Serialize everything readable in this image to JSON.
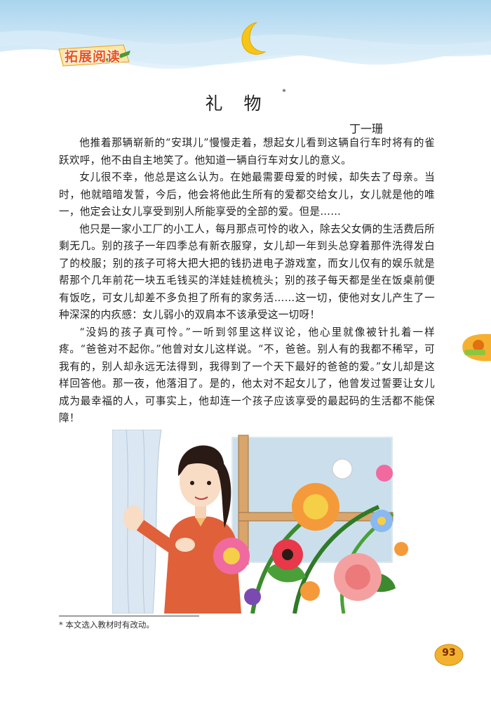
{
  "header": {
    "section_label": "拓展阅读"
  },
  "article": {
    "title": "礼物",
    "title_marker": "*",
    "author": "丁一珊",
    "paragraphs": [
      "他推着那辆崭新的“安琪儿”慢慢走着，想起女儿看到这辆自行车时将有的雀跃欢呼，他不由自主地笑了。他知道一辆自行车对女儿的意义。",
      "女儿很不幸，他总是这么认为。在她最需要母爱的时候，却失去了母亲。当时，他就暗暗发誓，今后，他会将他此生所有的爱都交给女儿，女儿就是他的唯一，他定会让女儿享受到别人所能享受的全部的爱。但是……",
      "他只是一家小工厂的小工人，每月那点可怜的收入，除去父女俩的生活费后所剩无几。别的孩子一年四季总有新衣服穿，女儿却一年到头总穿着那件洗得发白了的校服；别的孩子可将大把大把的钱扔进电子游戏室，而女儿仅有的娱乐就是帮那个几年前花一块五毛钱买的洋娃娃梳梳头；别的孩子每天都是坐在饭桌前便有饭吃，可女儿却差不多负担了所有的家务活……这一切，使他对女儿产生了一种深深的内疚感：女儿弱小的双肩本不该承受这一切呀！",
      "“没妈的孩子真可怜。”一听到邻里这样议论，他心里就像被针扎着一样疼。“爸爸对不起你。”他曾对女儿这样说。“不，爸爸。别人有的我都不稀罕，可我有的，别人却永远无法得到，我得到了一个天下最好的爸爸的爱。”女儿却是这样回答他。那一夜，他落泪了。是的，他太对不起女儿了，他曾发过誓要让女儿成为最幸福的人，可事实上，他却连一个孩子应该享受的最起码的生活都不能保障！"
    ]
  },
  "footnote": "* 本文选入教材时有改动。",
  "page_number": "93",
  "colors": {
    "sky": "#b9dcf0",
    "moon": "#f5c518",
    "badge": "#e8541c",
    "page_badge": "#f2b230"
  }
}
